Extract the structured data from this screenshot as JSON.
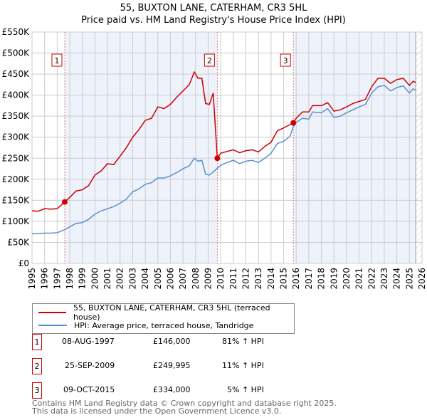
{
  "title": "55, BUXTON LANE, CATERHAM, CR3 5HL",
  "subtitle": "Price paid vs. HM Land Registry's House Price Index (HPI)",
  "chart_data": {
    "type": "line",
    "title": "55, BUXTON LANE, CATERHAM, CR3 5HL",
    "xlim": [
      1995,
      2026
    ],
    "ylim": [
      0,
      550000
    ],
    "yticks": [
      "£0",
      "£50K",
      "£100K",
      "£150K",
      "£200K",
      "£250K",
      "£300K",
      "£350K",
      "£400K",
      "£450K",
      "£500K",
      "£550K"
    ],
    "xticks": [
      "1995",
      "1996",
      "1997",
      "1998",
      "1999",
      "2000",
      "2001",
      "2002",
      "2003",
      "2004",
      "2005",
      "2006",
      "2007",
      "2008",
      "2009",
      "2010",
      "2011",
      "2012",
      "2013",
      "2014",
      "2015",
      "2016",
      "2017",
      "2018",
      "2019",
      "2020",
      "2021",
      "2022",
      "2023",
      "2024",
      "2025",
      "2026"
    ],
    "grid": true,
    "colors": {
      "property": "#cc0000",
      "hpi": "#5b8fd0",
      "shade": "#edf2fb"
    },
    "series": [
      {
        "name": "55, BUXTON LANE, CATERHAM, CR3 5HL (terraced house)",
        "points": [
          [
            1995,
            125000
          ],
          [
            1995.5,
            124000
          ],
          [
            1996,
            130000
          ],
          [
            1996.5,
            129000
          ],
          [
            1997,
            130000
          ],
          [
            1997.6,
            146000
          ],
          [
            1998,
            157000
          ],
          [
            1998.5,
            172000
          ],
          [
            1999,
            175000
          ],
          [
            1999.5,
            185000
          ],
          [
            2000,
            210000
          ],
          [
            2000.5,
            220000
          ],
          [
            2001,
            237000
          ],
          [
            2001.5,
            235000
          ],
          [
            2002,
            255000
          ],
          [
            2002.5,
            275000
          ],
          [
            2003,
            300000
          ],
          [
            2003.5,
            318000
          ],
          [
            2004,
            340000
          ],
          [
            2004.5,
            345000
          ],
          [
            2005,
            372000
          ],
          [
            2005.5,
            368000
          ],
          [
            2006,
            378000
          ],
          [
            2006.5,
            395000
          ],
          [
            2007,
            410000
          ],
          [
            2007.5,
            425000
          ],
          [
            2007.9,
            455000
          ],
          [
            2008.2,
            440000
          ],
          [
            2008.5,
            440000
          ],
          [
            2008.8,
            380000
          ],
          [
            2009.1,
            378000
          ],
          [
            2009.4,
            405000
          ],
          [
            2009.73,
            249995
          ],
          [
            2010,
            262000
          ],
          [
            2010.5,
            266000
          ],
          [
            2011,
            270000
          ],
          [
            2011.5,
            263000
          ],
          [
            2012,
            268000
          ],
          [
            2012.5,
            270000
          ],
          [
            2013,
            265000
          ],
          [
            2013.5,
            278000
          ],
          [
            2014,
            288000
          ],
          [
            2014.5,
            315000
          ],
          [
            2015,
            322000
          ],
          [
            2015.5,
            330000
          ],
          [
            2015.77,
            334000
          ],
          [
            2016,
            345000
          ],
          [
            2016.5,
            360000
          ],
          [
            2017,
            360000
          ],
          [
            2017.3,
            375000
          ],
          [
            2018,
            375000
          ],
          [
            2018.5,
            382000
          ],
          [
            2019,
            362000
          ],
          [
            2019.5,
            365000
          ],
          [
            2020,
            372000
          ],
          [
            2020.5,
            380000
          ],
          [
            2021,
            385000
          ],
          [
            2021.5,
            390000
          ],
          [
            2022,
            420000
          ],
          [
            2022.5,
            440000
          ],
          [
            2023,
            440000
          ],
          [
            2023.5,
            428000
          ],
          [
            2024,
            437000
          ],
          [
            2024.5,
            440000
          ],
          [
            2025,
            423000
          ],
          [
            2025.3,
            433000
          ],
          [
            2025.5,
            430000
          ]
        ]
      },
      {
        "name": "HPI: Average price, terraced house, Tandridge",
        "points": [
          [
            1995,
            70000
          ],
          [
            1995.5,
            71000
          ],
          [
            1996,
            72000
          ],
          [
            1996.5,
            72000
          ],
          [
            1997,
            73000
          ],
          [
            1997.6,
            80000
          ],
          [
            1998,
            87000
          ],
          [
            1998.5,
            95000
          ],
          [
            1999,
            97000
          ],
          [
            1999.5,
            105000
          ],
          [
            2000,
            117000
          ],
          [
            2000.5,
            125000
          ],
          [
            2001,
            130000
          ],
          [
            2001.5,
            135000
          ],
          [
            2002,
            143000
          ],
          [
            2002.5,
            153000
          ],
          [
            2003,
            170000
          ],
          [
            2003.5,
            177000
          ],
          [
            2004,
            188000
          ],
          [
            2004.5,
            192000
          ],
          [
            2005,
            203000
          ],
          [
            2005.5,
            203000
          ],
          [
            2006,
            208000
          ],
          [
            2006.5,
            216000
          ],
          [
            2007,
            225000
          ],
          [
            2007.5,
            232000
          ],
          [
            2007.9,
            250000
          ],
          [
            2008.2,
            243000
          ],
          [
            2008.5,
            245000
          ],
          [
            2008.8,
            212000
          ],
          [
            2009.1,
            210000
          ],
          [
            2009.5,
            220000
          ],
          [
            2010,
            233000
          ],
          [
            2010.5,
            240000
          ],
          [
            2011,
            245000
          ],
          [
            2011.5,
            237000
          ],
          [
            2012,
            243000
          ],
          [
            2012.5,
            245000
          ],
          [
            2013,
            240000
          ],
          [
            2013.5,
            250000
          ],
          [
            2014,
            262000
          ],
          [
            2014.5,
            285000
          ],
          [
            2015,
            290000
          ],
          [
            2015.5,
            302000
          ],
          [
            2015.77,
            325000
          ],
          [
            2016,
            335000
          ],
          [
            2016.5,
            345000
          ],
          [
            2017,
            343000
          ],
          [
            2017.3,
            360000
          ],
          [
            2018,
            358000
          ],
          [
            2018.5,
            368000
          ],
          [
            2019,
            347000
          ],
          [
            2019.5,
            350000
          ],
          [
            2020,
            358000
          ],
          [
            2020.5,
            365000
          ],
          [
            2021,
            372000
          ],
          [
            2021.5,
            378000
          ],
          [
            2022,
            405000
          ],
          [
            2022.5,
            420000
          ],
          [
            2023,
            423000
          ],
          [
            2023.5,
            410000
          ],
          [
            2024,
            418000
          ],
          [
            2024.5,
            422000
          ],
          [
            2025,
            405000
          ],
          [
            2025.3,
            415000
          ],
          [
            2025.5,
            412000
          ]
        ]
      }
    ],
    "sales": [
      {
        "label": "1",
        "x": 1997.6,
        "y": 146000
      },
      {
        "label": "2",
        "x": 2009.73,
        "y": 249995
      },
      {
        "label": "3",
        "x": 2015.77,
        "y": 334000
      }
    ],
    "projection_start": 2025.5
  },
  "legend": {
    "property": "55, BUXTON LANE, CATERHAM, CR3 5HL (terraced house)",
    "hpi": "HPI: Average price, terraced house, Tandridge"
  },
  "transactions": [
    {
      "num": "1",
      "date": "08-AUG-1997",
      "price": "£146,000",
      "hpi": "81% ↑ HPI"
    },
    {
      "num": "2",
      "date": "25-SEP-2009",
      "price": "£249,995",
      "hpi": "11% ↑ HPI"
    },
    {
      "num": "3",
      "date": "09-OCT-2015",
      "price": "£334,000",
      "hpi": "5% ↑ HPI"
    }
  ],
  "footer": {
    "line1": "Contains HM Land Registry data © Crown copyright and database right 2025.",
    "line2": "This data is licensed under the Open Government Licence v3.0."
  }
}
